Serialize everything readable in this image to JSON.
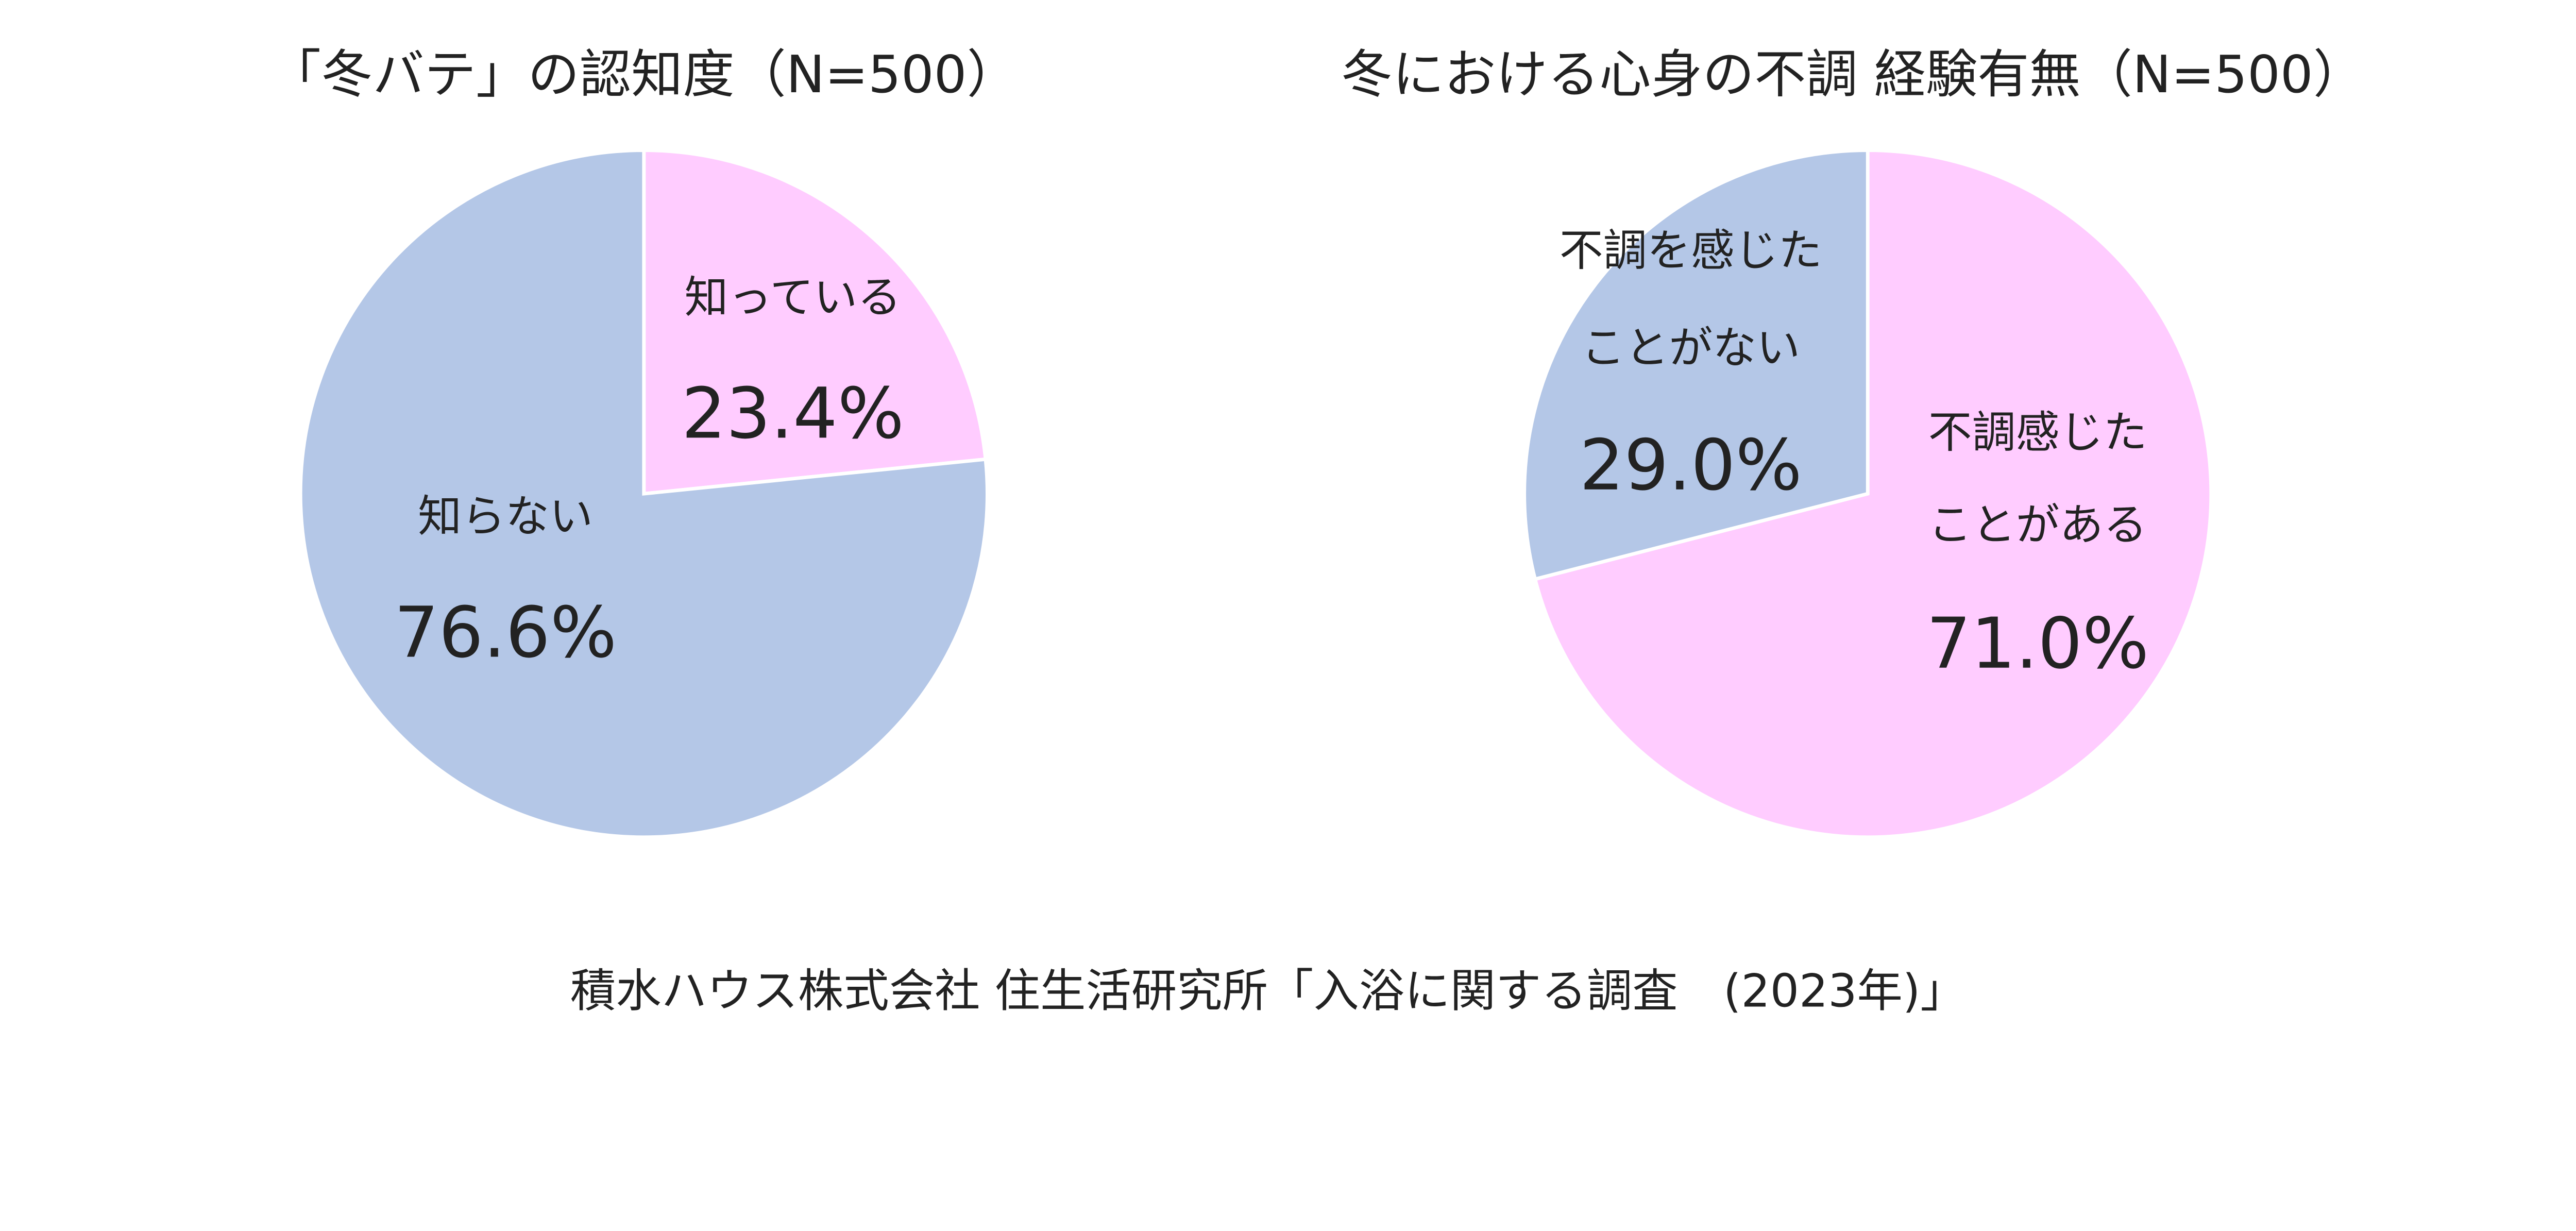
{
  "chart_data": [
    {
      "type": "pie",
      "title": "「冬バテ」の認知度（N=500）",
      "start": "top",
      "direction": "clockwise",
      "slices": [
        {
          "label": [
            "知っている"
          ],
          "value": 23.4,
          "value_label": "23.4%",
          "color": "#FFCCFF"
        },
        {
          "label": [
            "知らない"
          ],
          "value": 76.6,
          "value_label": "76.6%",
          "color": "#B4C7E7"
        }
      ]
    },
    {
      "type": "pie",
      "title": "冬における心身の不調 経験有無（N=500）",
      "start": "top",
      "direction": "clockwise",
      "slices": [
        {
          "label": [
            "不調感じた",
            "ことがある"
          ],
          "value": 71.0,
          "value_label": "71.0%",
          "color": "#FFCCFF"
        },
        {
          "label": [
            "不調を感じた",
            "ことがない"
          ],
          "value": 29.0,
          "value_label": "29.0%",
          "color": "#B4C7E7"
        }
      ]
    }
  ],
  "source": "積水ハウス株式会社 住生活研究所「入浴に関する調査　(2023年)」"
}
